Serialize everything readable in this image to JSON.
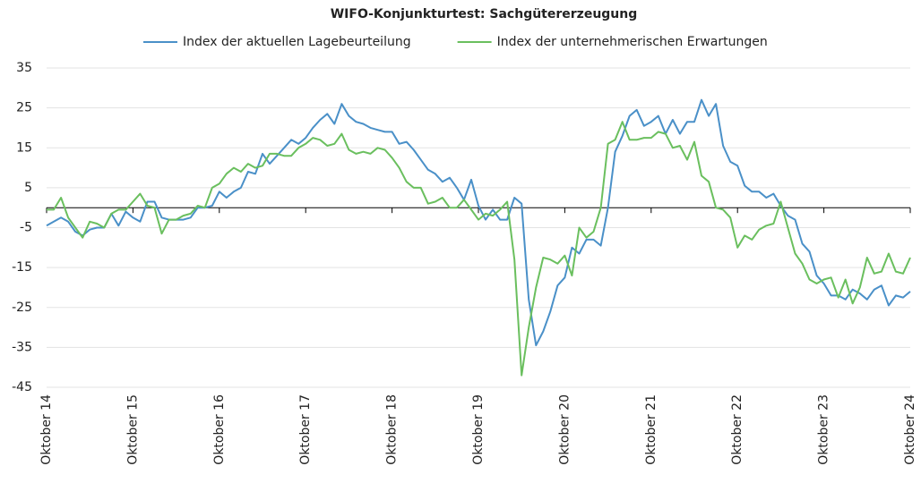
{
  "chart_data": {
    "type": "line",
    "title": "WIFO-Konjunkturtest: Sachgütererzeugung",
    "categories": [
      "Oktober 14",
      null,
      null,
      null,
      null,
      null,
      null,
      null,
      null,
      null,
      null,
      null,
      "Oktober 15",
      null,
      null,
      null,
      null,
      null,
      null,
      null,
      null,
      null,
      null,
      null,
      "Oktober 16",
      null,
      null,
      null,
      null,
      null,
      null,
      null,
      null,
      null,
      null,
      null,
      "Oktober 17",
      null,
      null,
      null,
      null,
      null,
      null,
      null,
      null,
      null,
      null,
      null,
      "Oktober 18",
      null,
      null,
      null,
      null,
      null,
      null,
      null,
      null,
      null,
      null,
      null,
      "Oktober 19",
      null,
      null,
      null,
      null,
      null,
      null,
      null,
      null,
      null,
      null,
      null,
      "Oktober 20",
      null,
      null,
      null,
      null,
      null,
      null,
      null,
      null,
      null,
      null,
      null,
      "Oktober 21",
      null,
      null,
      null,
      null,
      null,
      null,
      null,
      null,
      null,
      null,
      null,
      "Oktober 22",
      null,
      null,
      null,
      null,
      null,
      null,
      null,
      null,
      null,
      null,
      null,
      "Oktober 23",
      null,
      null,
      null,
      null,
      null,
      null,
      null,
      null,
      null,
      null,
      null,
      "Oktober 24"
    ],
    "series": [
      {
        "name": "Index der aktuellen Lagebeurteilung",
        "color": "#4a90c8",
        "values": [
          -4.5,
          -3.5,
          -2.5,
          -3.5,
          -6,
          -7,
          -5.5,
          -5,
          -5,
          -1.5,
          -4.5,
          -1,
          -2.5,
          -3.5,
          1.5,
          1.5,
          -2.5,
          -3,
          -3,
          -3,
          -2.5,
          0,
          0,
          0.5,
          4,
          2.5,
          4,
          5,
          9,
          8.5,
          13.5,
          11,
          13,
          15,
          17,
          16,
          17.5,
          20,
          22,
          23.5,
          21,
          26,
          23,
          21.5,
          21,
          20,
          19.5,
          19,
          19,
          16,
          16.5,
          14.5,
          12,
          9.5,
          8.5,
          6.5,
          7.5,
          5,
          2,
          7,
          0.5,
          -3,
          -0.5,
          -3,
          -3,
          2.5,
          1,
          -23,
          -34.5,
          -31,
          -26,
          -19.5,
          -17.5,
          -10,
          -11.5,
          -8,
          -8,
          -9.5,
          0,
          14,
          18,
          23,
          24.5,
          20.5,
          21.5,
          23,
          18.5,
          22,
          18.5,
          21.5,
          21.5,
          27,
          23,
          26,
          15.5,
          11.5,
          10.5,
          5.5,
          4,
          4,
          2.5,
          3.5,
          0.5,
          -2,
          -3,
          -9,
          -11,
          -17,
          -19,
          -22,
          -22,
          -23,
          -20.5,
          -21.5,
          -23,
          -20.5,
          -19.5,
          -24.5,
          -22,
          -22.5,
          -21
        ]
      },
      {
        "name": "Index der unternehmerischen Erwartungen",
        "color": "#6abf5e",
        "values": [
          -0.5,
          -0.5,
          2.5,
          -2.5,
          -5,
          -7.5,
          -3.5,
          -4,
          -5,
          -1.5,
          -0.5,
          -0.5,
          1.5,
          3.5,
          0.5,
          0,
          -6.5,
          -3,
          -3,
          -2,
          -1.5,
          0.5,
          0,
          5,
          6,
          8.5,
          10,
          9,
          11,
          10,
          10.5,
          13.5,
          13.5,
          13,
          13,
          15,
          16,
          17.5,
          17,
          15.5,
          16,
          18.5,
          14.5,
          13.5,
          14,
          13.5,
          15,
          14.5,
          12.5,
          10,
          6.5,
          5,
          5,
          1,
          1.5,
          2.5,
          0,
          0,
          2,
          -0.5,
          -3,
          -1.5,
          -2,
          -0.5,
          1.5,
          -13,
          -42,
          -30,
          -20,
          -12.5,
          -13,
          -14,
          -12,
          -17,
          -5,
          -7.5,
          -6,
          0,
          16,
          17,
          21.5,
          17,
          17,
          17.5,
          17.5,
          19,
          18.5,
          15,
          15.5,
          12,
          16.5,
          8,
          6.5,
          0,
          -0.5,
          -2.5,
          -10,
          -7,
          -8,
          -5.5,
          -4.5,
          -4,
          1.5,
          -5,
          -11.5,
          -14,
          -18,
          -19,
          -18,
          -17.5,
          -22.5,
          -18,
          -24,
          -20,
          -12.5,
          -16.5,
          -16,
          -11.5,
          -16,
          -16.5,
          -12.5
        ]
      }
    ],
    "ylim": [
      -45,
      35
    ],
    "yticks": [
      35,
      25,
      15,
      5,
      -5,
      -15,
      -25,
      -35,
      -45
    ],
    "grid": true,
    "legend": "top"
  }
}
